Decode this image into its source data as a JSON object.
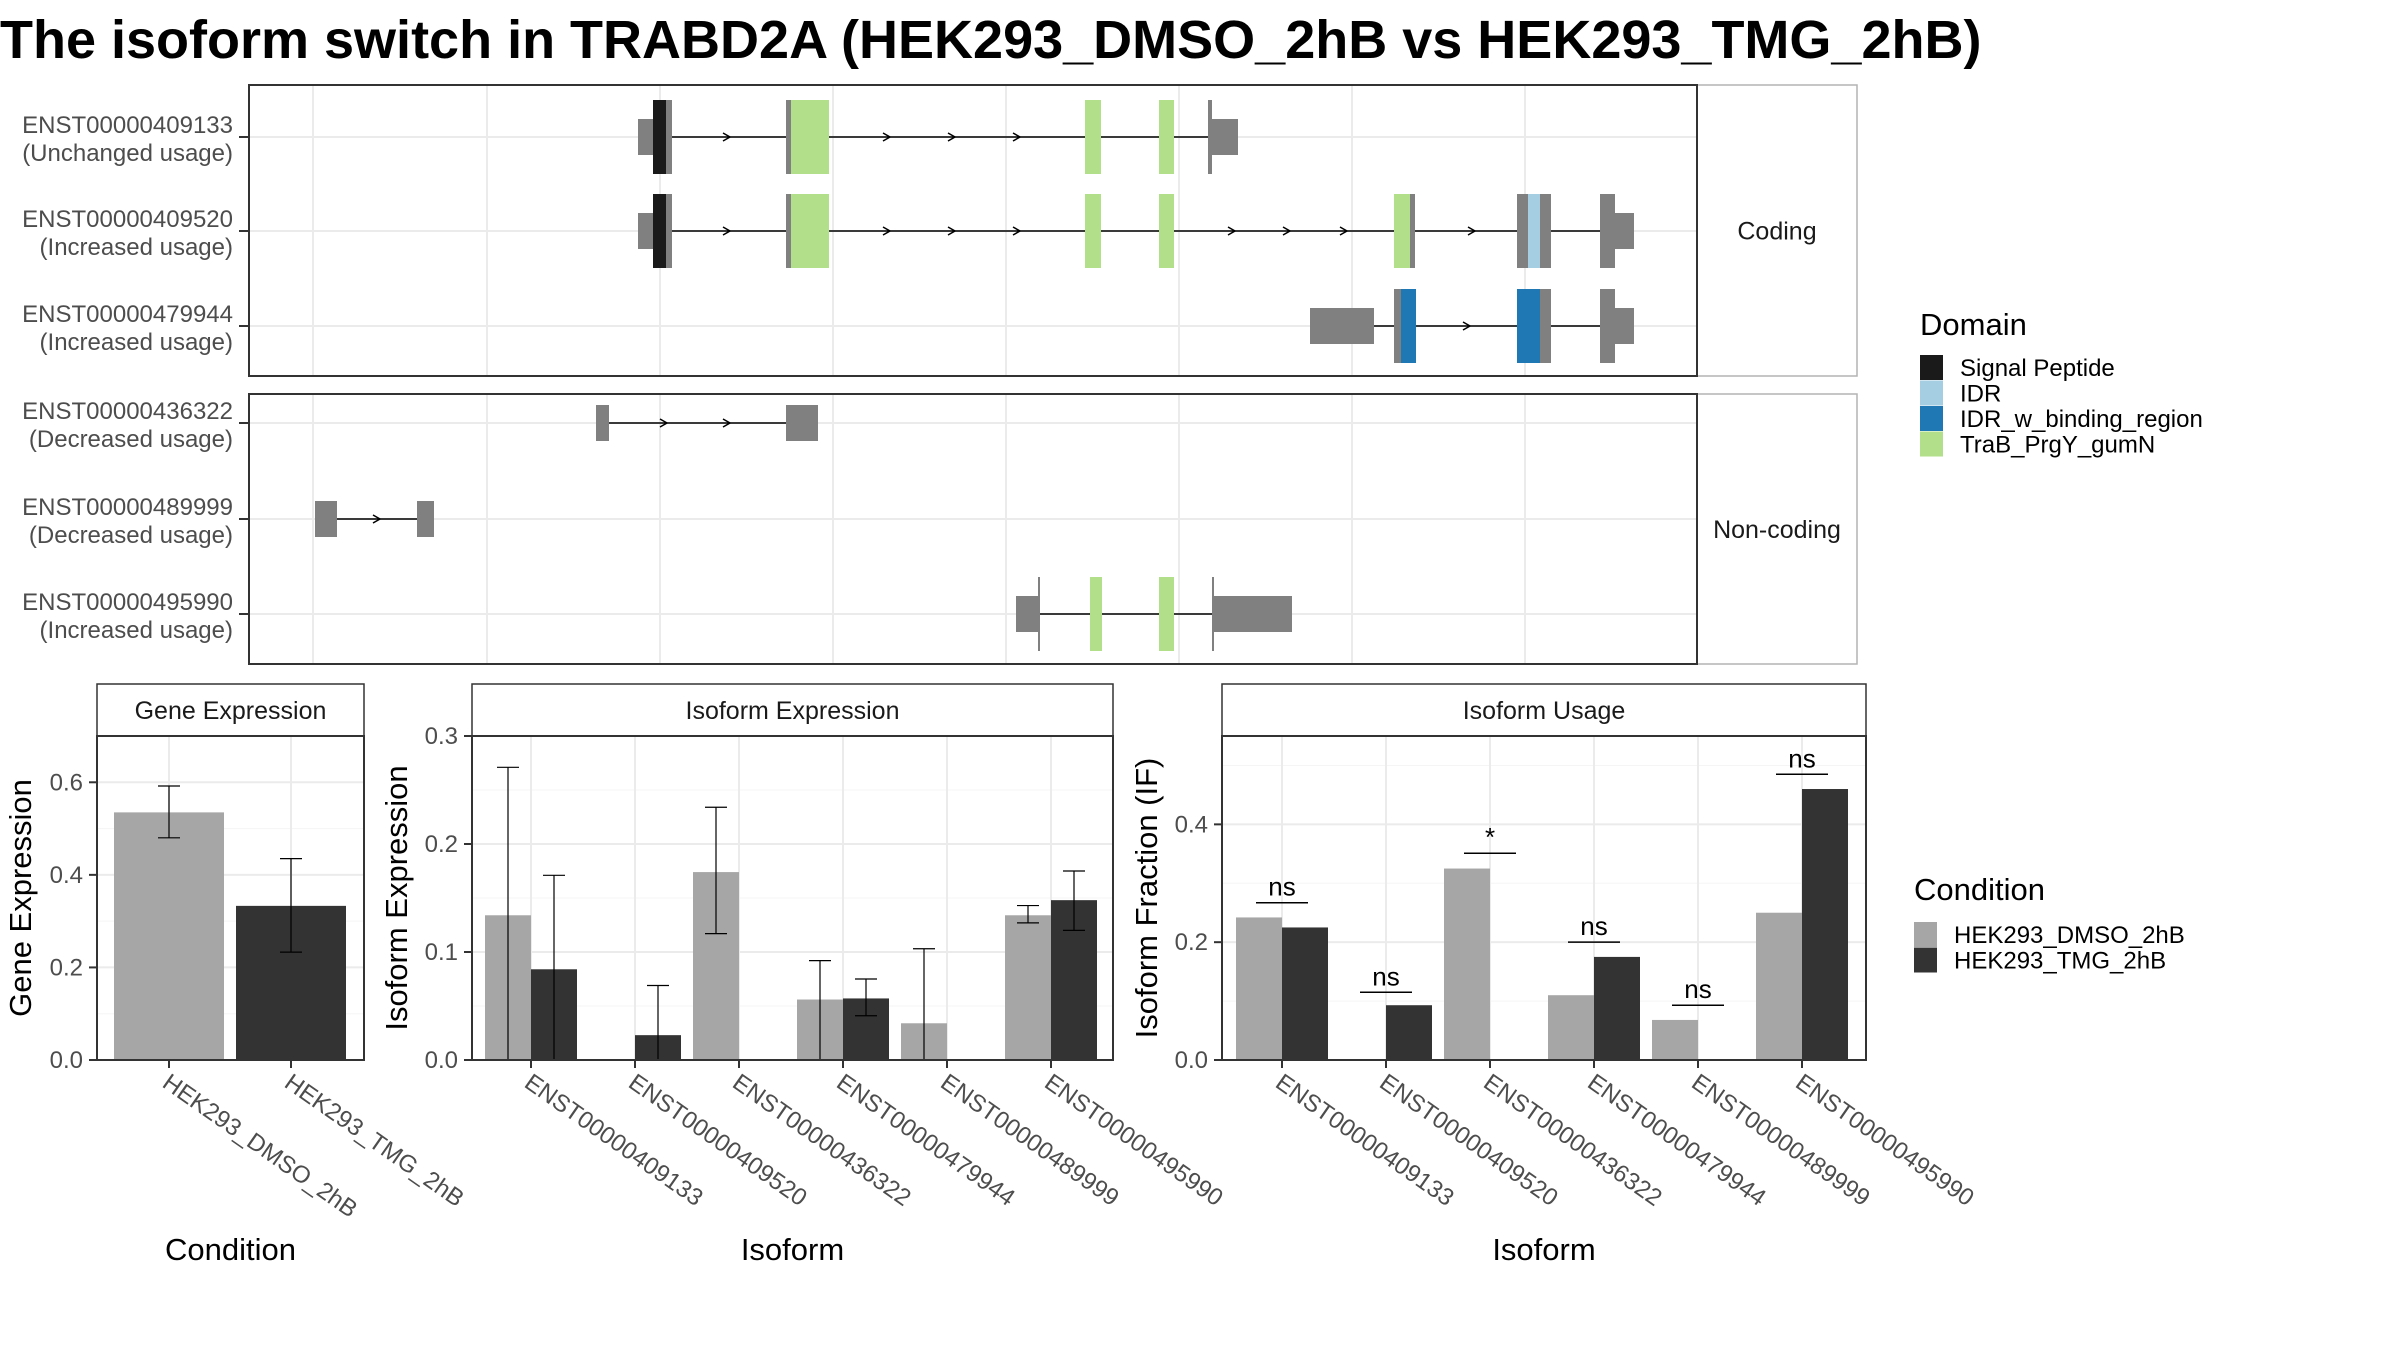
{
  "title": "The isoform switch in TRABD2A (HEK293_DMSO_2hB vs HEK293_TMG_2hB)",
  "colors": {
    "dmso": "#a6a6a6",
    "tmg": "#333333",
    "exon": "#808080",
    "signal_peptide": "#1a1a1a",
    "idr": "#a6cee3",
    "idr_binding": "#1f78b4",
    "trab": "#b2df8a"
  },
  "structure": {
    "facets": [
      "Coding",
      "Non-coding"
    ],
    "isoforms": [
      {
        "id": "ENST00000409133",
        "usage": "(Unchanged usage)",
        "group": "Coding"
      },
      {
        "id": "ENST00000409520",
        "usage": "(Increased usage)",
        "group": "Coding"
      },
      {
        "id": "ENST00000479944",
        "usage": "(Increased usage)",
        "group": "Coding"
      },
      {
        "id": "ENST00000436322",
        "usage": "(Decreased usage)",
        "group": "Non-coding"
      },
      {
        "id": "ENST00000489999",
        "usage": "(Decreased usage)",
        "group": "Non-coding"
      },
      {
        "id": "ENST00000495990",
        "usage": "(Increased usage)",
        "group": "Non-coding"
      }
    ]
  },
  "legend_domain": {
    "title": "Domain",
    "items": [
      "Signal Peptide",
      "IDR",
      "IDR_w_binding_region",
      "TraB_PrgY_gumN"
    ]
  },
  "legend_condition": {
    "title": "Condition",
    "items": [
      "HEK293_DMSO_2hB",
      "HEK293_TMG_2hB"
    ]
  },
  "chart_data": [
    {
      "type": "bar",
      "title": "Gene Expression",
      "xlabel": "Condition",
      "ylabel": "Gene Expression",
      "categories": [
        "HEK293_DMSO_2hB",
        "HEK293_TMG_2hB"
      ],
      "values": [
        0.535,
        0.333
      ],
      "error_low": [
        0.48,
        0.233
      ],
      "error_high": [
        0.592,
        0.435
      ],
      "ylim": [
        0,
        0.7
      ],
      "yticks": [
        "0.0",
        "0.2",
        "0.4",
        "0.6"
      ]
    },
    {
      "type": "bar",
      "title": "Isoform Expression",
      "xlabel": "Isoform",
      "ylabel": "Isoform Expression",
      "categories": [
        "ENST00000409133",
        "ENST00000409520",
        "ENST00000436322",
        "ENST00000479944",
        "ENST00000489999",
        "ENST00000495990"
      ],
      "series": [
        {
          "name": "HEK293_DMSO_2hB",
          "values": [
            0.134,
            0.0,
            0.174,
            0.056,
            0.034,
            0.134
          ],
          "error_low": [
            0.0,
            0.0,
            0.117,
            0.0,
            0.0,
            0.127
          ],
          "error_high": [
            0.271,
            0.0,
            0.234,
            0.092,
            0.103,
            0.143
          ]
        },
        {
          "name": "HEK293_TMG_2hB",
          "values": [
            0.084,
            0.023,
            0.0,
            0.057,
            0.0,
            0.148
          ],
          "error_low": [
            0.0,
            0.0,
            0.0,
            0.041,
            0.0,
            0.12
          ],
          "error_high": [
            0.171,
            0.069,
            0.0,
            0.075,
            0.0,
            0.175
          ]
        }
      ],
      "ylim": [
        0,
        0.3
      ],
      "yticks": [
        "0.0",
        "0.1",
        "0.2",
        "0.3"
      ]
    },
    {
      "type": "bar",
      "title": "Isoform Usage",
      "xlabel": "Isoform",
      "ylabel": "Isoform Fraction (IF)",
      "categories": [
        "ENST00000409133",
        "ENST00000409520",
        "ENST00000436322",
        "ENST00000479944",
        "ENST00000489999",
        "ENST00000495990"
      ],
      "series": [
        {
          "name": "HEK293_DMSO_2hB",
          "values": [
            0.242,
            0.0,
            0.325,
            0.11,
            0.068,
            0.25
          ]
        },
        {
          "name": "HEK293_TMG_2hB",
          "values": [
            0.225,
            0.093,
            0.0,
            0.175,
            0.0,
            0.46
          ]
        }
      ],
      "significance": [
        "ns",
        "ns",
        "*",
        "ns",
        "ns",
        "ns"
      ],
      "sig_levels": [
        0.267,
        0.115,
        0.351,
        0.2,
        0.093,
        0.485
      ],
      "ylim": [
        0,
        0.55
      ],
      "yticks": [
        "0.0",
        "0.2",
        "0.4"
      ]
    }
  ]
}
